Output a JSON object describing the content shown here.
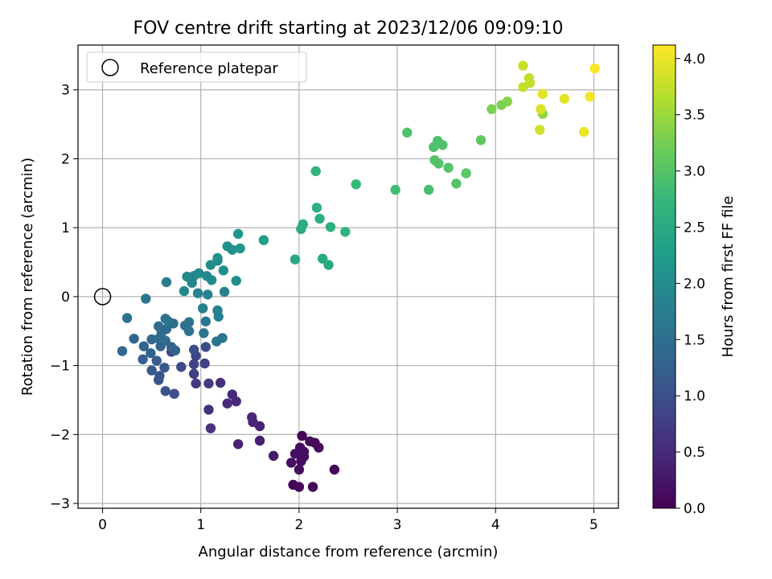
{
  "chart_data": {
    "type": "scatter",
    "title": "FOV centre drift starting at 2023/12/06 09:09:10",
    "xlabel": "Angular distance from reference (arcmin)",
    "ylabel": "Rotation from reference (arcmin)",
    "xlim": [
      -0.25,
      5.25
    ],
    "ylim": [
      -3.07,
      3.65
    ],
    "xticks": [
      0,
      1,
      2,
      3,
      4,
      5
    ],
    "yticks": [
      -3,
      -2,
      -1,
      0,
      1,
      2,
      3
    ],
    "grid": true,
    "legend": {
      "placement": "top-left",
      "label": "Reference platepar"
    },
    "reference_point": {
      "x": 0,
      "y": 0
    },
    "colorbar": {
      "label": "Hours from first FF file",
      "range": [
        0.0,
        4.12
      ],
      "ticks": [
        "0.0",
        "0.5",
        "1.0",
        "1.5",
        "2.0",
        "2.5",
        "3.0",
        "3.5",
        "4.0"
      ],
      "colormap": "viridis"
    },
    "points": [
      {
        "x": 1.94,
        "y": -2.73,
        "c": 0.05
      },
      {
        "x": 2.0,
        "y": -2.76,
        "c": 0.05
      },
      {
        "x": 2.14,
        "y": -2.76,
        "c": 0.05
      },
      {
        "x": 2.36,
        "y": -2.51,
        "c": 0.05
      },
      {
        "x": 2.03,
        "y": -2.02,
        "c": 0.05
      },
      {
        "x": 2.11,
        "y": -2.1,
        "c": 0.1
      },
      {
        "x": 2.16,
        "y": -2.12,
        "c": 0.1
      },
      {
        "x": 2.2,
        "y": -2.19,
        "c": 0.1
      },
      {
        "x": 1.92,
        "y": -2.41,
        "c": 0.15
      },
      {
        "x": 1.96,
        "y": -2.28,
        "c": 0.15
      },
      {
        "x": 2.0,
        "y": -2.51,
        "c": 0.15
      },
      {
        "x": 2.02,
        "y": -2.39,
        "c": 0.15
      },
      {
        "x": 2.01,
        "y": -2.19,
        "c": 0.15
      },
      {
        "x": 2.05,
        "y": -2.25,
        "c": 0.15
      },
      {
        "x": 2.05,
        "y": -2.32,
        "c": 0.15
      },
      {
        "x": 1.74,
        "y": -2.31,
        "c": 0.3
      },
      {
        "x": 1.6,
        "y": -2.09,
        "c": 0.35
      },
      {
        "x": 1.6,
        "y": -1.88,
        "c": 0.4
      },
      {
        "x": 1.38,
        "y": -2.14,
        "c": 0.4
      },
      {
        "x": 1.52,
        "y": -1.75,
        "c": 0.45
      },
      {
        "x": 1.53,
        "y": -1.82,
        "c": 0.45
      },
      {
        "x": 1.27,
        "y": -1.55,
        "c": 0.5
      },
      {
        "x": 1.32,
        "y": -1.42,
        "c": 0.5
      },
      {
        "x": 1.36,
        "y": -1.52,
        "c": 0.5
      },
      {
        "x": 1.2,
        "y": -1.25,
        "c": 0.55
      },
      {
        "x": 1.1,
        "y": -1.91,
        "c": 0.6
      },
      {
        "x": 1.08,
        "y": -1.64,
        "c": 0.6
      },
      {
        "x": 0.95,
        "y": -1.26,
        "c": 0.65
      },
      {
        "x": 1.08,
        "y": -1.26,
        "c": 0.7
      },
      {
        "x": 0.93,
        "y": -1.12,
        "c": 0.75
      },
      {
        "x": 0.93,
        "y": -0.98,
        "c": 0.8
      },
      {
        "x": 1.04,
        "y": -0.97,
        "c": 0.8
      },
      {
        "x": 0.95,
        "y": -0.86,
        "c": 0.85
      },
      {
        "x": 0.8,
        "y": -1.02,
        "c": 0.9
      },
      {
        "x": 0.7,
        "y": -0.8,
        "c": 0.9
      },
      {
        "x": 1.05,
        "y": -0.73,
        "c": 0.95
      },
      {
        "x": 0.93,
        "y": -0.77,
        "c": 1.0
      },
      {
        "x": 0.73,
        "y": -1.41,
        "c": 1.0
      },
      {
        "x": 0.64,
        "y": -1.37,
        "c": 1.05
      },
      {
        "x": 0.57,
        "y": -1.21,
        "c": 1.05
      },
      {
        "x": 0.58,
        "y": -1.15,
        "c": 1.1
      },
      {
        "x": 0.5,
        "y": -1.07,
        "c": 1.15
      },
      {
        "x": 0.63,
        "y": -1.03,
        "c": 1.15
      },
      {
        "x": 0.55,
        "y": -0.93,
        "c": 1.2
      },
      {
        "x": 0.41,
        "y": -0.91,
        "c": 1.25
      },
      {
        "x": 0.49,
        "y": -0.82,
        "c": 1.3
      },
      {
        "x": 0.59,
        "y": -0.72,
        "c": 1.3
      },
      {
        "x": 0.7,
        "y": -0.73,
        "c": 1.3
      },
      {
        "x": 0.74,
        "y": -0.78,
        "c": 1.3
      },
      {
        "x": 0.2,
        "y": -0.79,
        "c": 1.35
      },
      {
        "x": 0.42,
        "y": -0.72,
        "c": 1.35
      },
      {
        "x": 0.32,
        "y": -0.61,
        "c": 1.35
      },
      {
        "x": 0.5,
        "y": -0.62,
        "c": 1.4
      },
      {
        "x": 0.57,
        "y": -0.61,
        "c": 1.4
      },
      {
        "x": 0.64,
        "y": -0.64,
        "c": 1.4
      },
      {
        "x": 0.6,
        "y": -0.52,
        "c": 1.45
      },
      {
        "x": 0.65,
        "y": -0.47,
        "c": 1.45
      },
      {
        "x": 0.57,
        "y": -0.43,
        "c": 1.45
      },
      {
        "x": 0.72,
        "y": -0.39,
        "c": 1.5
      },
      {
        "x": 0.84,
        "y": -0.42,
        "c": 1.5
      },
      {
        "x": 0.88,
        "y": -0.5,
        "c": 1.5
      },
      {
        "x": 0.64,
        "y": -0.32,
        "c": 1.55
      },
      {
        "x": 0.67,
        "y": -0.36,
        "c": 1.55
      },
      {
        "x": 0.88,
        "y": -0.37,
        "c": 1.55
      },
      {
        "x": 0.25,
        "y": -0.31,
        "c": 1.55
      },
      {
        "x": 0.44,
        "y": -0.03,
        "c": 1.6
      },
      {
        "x": 1.03,
        "y": -0.53,
        "c": 1.6
      },
      {
        "x": 1.16,
        "y": -0.65,
        "c": 1.6
      },
      {
        "x": 1.22,
        "y": -0.6,
        "c": 1.6
      },
      {
        "x": 1.05,
        "y": -0.36,
        "c": 1.65
      },
      {
        "x": 0.65,
        "y": 0.21,
        "c": 1.7
      },
      {
        "x": 1.02,
        "y": -0.17,
        "c": 1.8
      },
      {
        "x": 1.18,
        "y": -0.29,
        "c": 1.8
      },
      {
        "x": 1.17,
        "y": -0.2,
        "c": 1.8
      },
      {
        "x": 0.97,
        "y": 0.05,
        "c": 1.85
      },
      {
        "x": 1.07,
        "y": 0.03,
        "c": 1.85
      },
      {
        "x": 1.24,
        "y": 0.07,
        "c": 1.85
      },
      {
        "x": 0.83,
        "y": 0.08,
        "c": 1.9
      },
      {
        "x": 0.91,
        "y": 0.2,
        "c": 1.9
      },
      {
        "x": 0.86,
        "y": 0.29,
        "c": 1.9
      },
      {
        "x": 0.93,
        "y": 0.3,
        "c": 1.9
      },
      {
        "x": 0.98,
        "y": 0.34,
        "c": 1.95
      },
      {
        "x": 1.06,
        "y": 0.3,
        "c": 1.95
      },
      {
        "x": 1.11,
        "y": 0.24,
        "c": 1.95
      },
      {
        "x": 1.1,
        "y": 0.46,
        "c": 2.0
      },
      {
        "x": 1.17,
        "y": 0.52,
        "c": 2.0
      },
      {
        "x": 1.23,
        "y": 0.38,
        "c": 2.05
      },
      {
        "x": 1.36,
        "y": 0.23,
        "c": 2.05
      },
      {
        "x": 1.17,
        "y": 0.56,
        "c": 2.05
      },
      {
        "x": 1.27,
        "y": 0.73,
        "c": 2.1
      },
      {
        "x": 1.32,
        "y": 0.68,
        "c": 2.1
      },
      {
        "x": 1.4,
        "y": 0.7,
        "c": 2.15
      },
      {
        "x": 1.38,
        "y": 0.91,
        "c": 2.15
      },
      {
        "x": 1.64,
        "y": 0.82,
        "c": 2.3
      },
      {
        "x": 1.96,
        "y": 0.54,
        "c": 2.45
      },
      {
        "x": 2.24,
        "y": 0.55,
        "c": 2.5
      },
      {
        "x": 2.3,
        "y": 0.46,
        "c": 2.5
      },
      {
        "x": 2.02,
        "y": 0.98,
        "c": 2.55
      },
      {
        "x": 2.04,
        "y": 1.05,
        "c": 2.55
      },
      {
        "x": 2.18,
        "y": 1.29,
        "c": 2.6
      },
      {
        "x": 2.21,
        "y": 1.13,
        "c": 2.6
      },
      {
        "x": 2.32,
        "y": 1.01,
        "c": 2.6
      },
      {
        "x": 2.47,
        "y": 0.94,
        "c": 2.65
      },
      {
        "x": 2.17,
        "y": 1.82,
        "c": 2.7
      },
      {
        "x": 2.58,
        "y": 1.63,
        "c": 2.75
      },
      {
        "x": 2.98,
        "y": 1.55,
        "c": 2.85
      },
      {
        "x": 3.32,
        "y": 1.55,
        "c": 2.9
      },
      {
        "x": 3.1,
        "y": 2.38,
        "c": 2.95
      },
      {
        "x": 3.37,
        "y": 2.17,
        "c": 2.95
      },
      {
        "x": 3.41,
        "y": 2.26,
        "c": 2.95
      },
      {
        "x": 3.46,
        "y": 2.2,
        "c": 2.95
      },
      {
        "x": 3.38,
        "y": 1.98,
        "c": 3.0
      },
      {
        "x": 3.42,
        "y": 1.93,
        "c": 3.0
      },
      {
        "x": 3.52,
        "y": 1.87,
        "c": 3.0
      },
      {
        "x": 3.6,
        "y": 1.64,
        "c": 3.0
      },
      {
        "x": 3.7,
        "y": 1.79,
        "c": 3.05
      },
      {
        "x": 3.85,
        "y": 2.27,
        "c": 3.1
      },
      {
        "x": 3.96,
        "y": 2.72,
        "c": 3.3
      },
      {
        "x": 4.06,
        "y": 2.78,
        "c": 3.3
      },
      {
        "x": 4.12,
        "y": 2.83,
        "c": 3.35
      },
      {
        "x": 4.48,
        "y": 2.65,
        "c": 3.45
      },
      {
        "x": 4.28,
        "y": 3.04,
        "c": 3.75
      },
      {
        "x": 4.34,
        "y": 3.17,
        "c": 3.75
      },
      {
        "x": 4.35,
        "y": 3.1,
        "c": 3.75
      },
      {
        "x": 4.28,
        "y": 3.35,
        "c": 3.8
      },
      {
        "x": 4.45,
        "y": 2.42,
        "c": 3.85
      },
      {
        "x": 4.46,
        "y": 2.72,
        "c": 3.9
      },
      {
        "x": 4.48,
        "y": 2.94,
        "c": 3.95
      },
      {
        "x": 4.7,
        "y": 2.87,
        "c": 3.95
      },
      {
        "x": 4.9,
        "y": 2.39,
        "c": 4.0
      },
      {
        "x": 4.96,
        "y": 2.9,
        "c": 4.05
      },
      {
        "x": 5.01,
        "y": 3.31,
        "c": 4.1
      }
    ]
  }
}
